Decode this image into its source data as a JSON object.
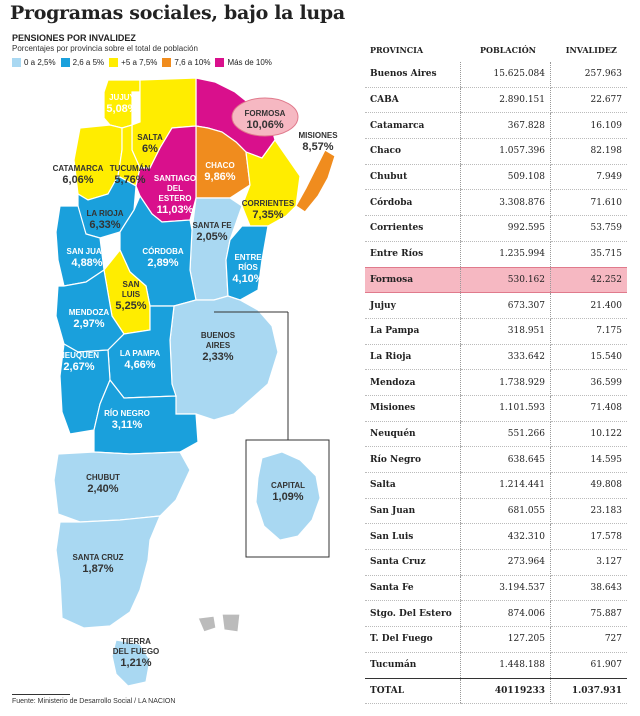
{
  "title": "Programas sociales, bajo la lupa",
  "subtitle": "PENSIONES POR INVALIDEZ",
  "description": "Porcentajes por provincia sobre el total de población",
  "legend": [
    {
      "label": "0 a 2,5%",
      "color": "#a9d8f2"
    },
    {
      "label": "2,6 a 5%",
      "color": "#1aa0dc"
    },
    {
      "label": "+5 a 7,5%",
      "color": "#ffed00"
    },
    {
      "label": "7,6 a 10%",
      "color": "#f08c1e"
    },
    {
      "label": "Más de 10%",
      "color": "#d9108c"
    }
  ],
  "table_headers": {
    "provincia": "PROVINCIA",
    "poblacion": "POBLACIÓN",
    "invalidez": "INVALIDEZ"
  },
  "footer": "Fuente: Ministerio de Desarrollo Social / LA NACION",
  "chart_data": [
    {
      "type": "map",
      "title": "PENSIONES POR INVALIDEZ",
      "regions": [
        {
          "name": "JUJUY",
          "value": "5,08%"
        },
        {
          "name": "FORMOSA",
          "value": "10,06%"
        },
        {
          "name": "SALTA",
          "value": "6%"
        },
        {
          "name": "MISIONES",
          "value": "8,57%"
        },
        {
          "name": "CATAMARCA",
          "value": "6,06%"
        },
        {
          "name": "TUCUMÁN",
          "value": "5,76%"
        },
        {
          "name": "CHACO",
          "value": "9,86%"
        },
        {
          "name": "SANTIAGO DEL ESTERO",
          "value": "11,03%"
        },
        {
          "name": "CORRIENTES",
          "value": "7,35%"
        },
        {
          "name": "LA RIOJA",
          "value": "6,33%"
        },
        {
          "name": "SANTA FE",
          "value": "2,05%"
        },
        {
          "name": "SAN JUAN",
          "value": "4,88%"
        },
        {
          "name": "CÓRDOBA",
          "value": "2,89%"
        },
        {
          "name": "ENTRE RÍOS",
          "value": "4,10%"
        },
        {
          "name": "SAN LUIS",
          "value": "5,25%"
        },
        {
          "name": "MENDOZA",
          "value": "2,97%"
        },
        {
          "name": "BUENOS AIRES",
          "value": "2,33%"
        },
        {
          "name": "LA PAMPA",
          "value": "4,66%"
        },
        {
          "name": "NEUQUÉN",
          "value": "2,67%"
        },
        {
          "name": "RÍO NEGRO",
          "value": "3,11%"
        },
        {
          "name": "CAPITAL",
          "value": "1,09%"
        },
        {
          "name": "CHUBUT",
          "value": "2,40%"
        },
        {
          "name": "SANTA CRUZ",
          "value": "1,87%"
        },
        {
          "name": "TIERRA DEL FUEGO",
          "value": "1,21%"
        }
      ]
    },
    {
      "type": "table",
      "columns": [
        "PROVINCIA",
        "POBLACIÓN",
        "INVALIDEZ"
      ],
      "rows": [
        [
          "Buenos Aires",
          "15.625.084",
          "257.963"
        ],
        [
          "CABA",
          "2.890.151",
          "22.677"
        ],
        [
          "Catamarca",
          "367.828",
          "16.109"
        ],
        [
          "Chaco",
          "1.057.396",
          "82.198"
        ],
        [
          "Chubut",
          "509.108",
          "7.949"
        ],
        [
          "Córdoba",
          "3.308.876",
          "71.610"
        ],
        [
          "Corrientes",
          "992.595",
          "53.759"
        ],
        [
          "Entre Ríos",
          "1.235.994",
          "35.715"
        ],
        [
          "Formosa",
          "530.162",
          "42.252"
        ],
        [
          "Jujuy",
          "673.307",
          "21.400"
        ],
        [
          "La Pampa",
          "318.951",
          "7.175"
        ],
        [
          "La Rioja",
          "333.642",
          "15.540"
        ],
        [
          "Mendoza",
          "1.738.929",
          "36.599"
        ],
        [
          "Misiones",
          "1.101.593",
          "71.408"
        ],
        [
          "Neuquén",
          "551.266",
          "10.122"
        ],
        [
          "Río Negro",
          "638.645",
          "14.595"
        ],
        [
          "Salta",
          "1.214.441",
          "49.808"
        ],
        [
          "San Juan",
          "681.055",
          "23.183"
        ],
        [
          "San Luis",
          "432.310",
          "17.578"
        ],
        [
          "Santa Cruz",
          "273.964",
          "3.127"
        ],
        [
          "Santa Fe",
          "3.194.537",
          "38.643"
        ],
        [
          "Stgo. Del Estero",
          "874.006",
          "75.887"
        ],
        [
          "T. Del Fuego",
          "127.205",
          "727"
        ],
        [
          "Tucumán",
          "1.448.188",
          "61.907"
        ],
        [
          "TOTAL",
          "40119233",
          "1.037.931"
        ]
      ],
      "highlight_row": "Formosa"
    }
  ]
}
